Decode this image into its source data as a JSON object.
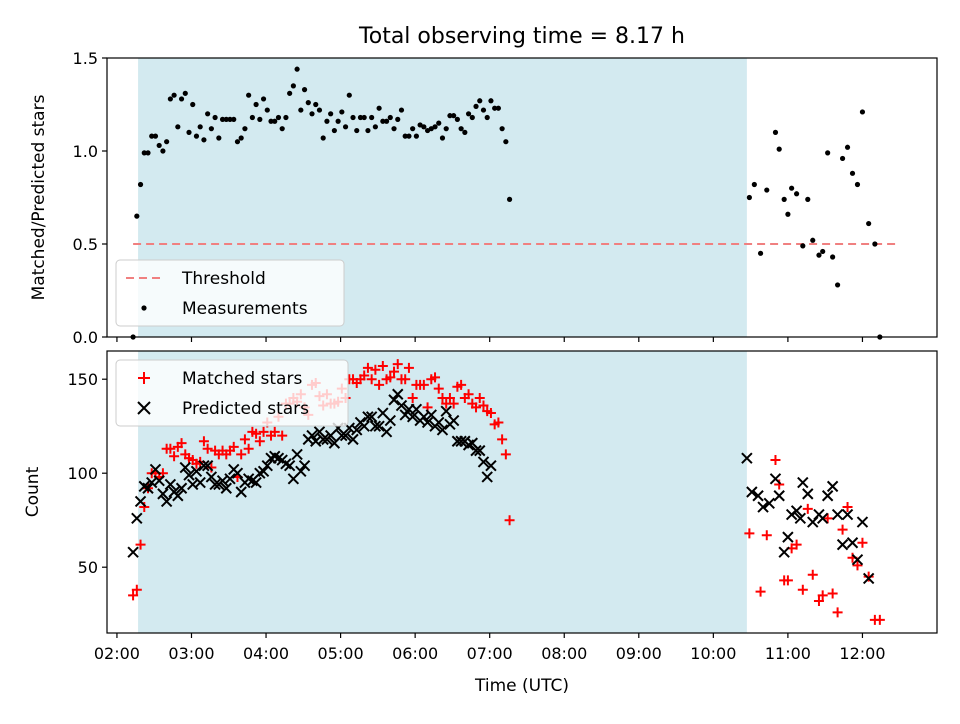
{
  "figure": {
    "title": "Total observing time = 8.17 h",
    "xlabel": "Time (UTC)",
    "x_ticks": [
      "02:00",
      "03:00",
      "04:00",
      "05:00",
      "06:00",
      "07:00",
      "08:00",
      "09:00",
      "10:00",
      "11:00",
      "12:00"
    ]
  },
  "colors": {
    "shade": "#d3eaf0",
    "threshold": "#f08080",
    "measure": "#000000",
    "matched": "#ff0000",
    "predicted": "#000000"
  },
  "chart_data": [
    {
      "type": "scatter",
      "ylabel": "Matched/Predicted stars",
      "xlim": [
        "01:52",
        "13:00"
      ],
      "ylim": [
        0,
        1.5
      ],
      "y_ticks": [
        "0.0",
        "0.5",
        "1.0",
        "1.5"
      ],
      "shaded_interval": [
        "02:17",
        "10:27"
      ],
      "threshold": {
        "name": "Threshold",
        "value": 0.5,
        "x_range": [
          "02:13",
          "12:30"
        ]
      },
      "legend": {
        "position": "lower-left",
        "entries": [
          "Threshold",
          "Measurements"
        ]
      },
      "series": [
        {
          "name": "Measurements",
          "x_start": "02:13",
          "x_step_minutes": 3,
          "values": [
            0.0,
            0.65,
            0.82,
            0.99,
            0.99,
            1.08,
            1.08,
            1.03,
            1.0,
            1.05,
            1.28,
            1.3,
            1.13,
            1.28,
            1.31,
            1.1,
            1.25,
            1.08,
            1.13,
            1.06,
            1.2,
            1.12,
            1.18,
            1.07,
            1.17,
            1.17,
            1.17,
            1.17,
            1.05,
            1.07,
            1.12,
            1.3,
            1.18,
            1.25,
            1.17,
            1.28,
            1.22,
            1.16,
            1.16,
            1.18,
            1.12,
            1.18,
            1.31,
            1.35,
            1.44,
            1.22,
            1.33,
            1.26,
            1.2,
            1.25,
            1.22,
            1.07,
            1.16,
            1.2,
            1.11,
            1.16,
            1.21,
            1.13,
            1.3,
            1.18,
            1.11,
            1.18,
            1.18,
            1.11,
            1.18,
            1.13,
            1.23,
            1.16,
            1.16,
            1.18,
            1.12,
            1.17,
            1.22,
            1.08,
            1.08,
            1.12,
            1.08,
            1.14,
            1.13,
            1.11,
            1.12,
            1.13,
            1.15,
            1.07,
            1.12,
            1.19,
            1.19,
            1.17,
            1.12,
            1.1,
            1.2,
            1.18,
            1.24,
            1.27,
            1.22,
            1.18,
            1.27,
            1.23,
            1.23,
            1.12,
            1.05,
            0.74
          ],
          "extra_points": [
            {
              "x": "10:29",
              "y": 0.75
            },
            {
              "x": "10:33",
              "y": 0.82
            },
            {
              "x": "10:38",
              "y": 0.45
            },
            {
              "x": "10:43",
              "y": 0.79
            },
            {
              "x": "10:50",
              "y": 1.1
            },
            {
              "x": "10:53",
              "y": 1.01
            },
            {
              "x": "10:57",
              "y": 0.74
            },
            {
              "x": "11:00",
              "y": 0.66
            },
            {
              "x": "11:03",
              "y": 0.8
            },
            {
              "x": "11:07",
              "y": 0.77
            },
            {
              "x": "11:12",
              "y": 0.49
            },
            {
              "x": "11:16",
              "y": 0.74
            },
            {
              "x": "11:20",
              "y": 0.52
            },
            {
              "x": "11:25",
              "y": 0.44
            },
            {
              "x": "11:28",
              "y": 0.46
            },
            {
              "x": "11:32",
              "y": 0.99
            },
            {
              "x": "11:36",
              "y": 0.43
            },
            {
              "x": "11:40",
              "y": 0.28
            },
            {
              "x": "11:44",
              "y": 0.96
            },
            {
              "x": "11:48",
              "y": 1.02
            },
            {
              "x": "11:52",
              "y": 0.88
            },
            {
              "x": "11:56",
              "y": 0.82
            },
            {
              "x": "12:00",
              "y": 1.21
            },
            {
              "x": "12:05",
              "y": 0.61
            },
            {
              "x": "12:10",
              "y": 0.5
            },
            {
              "x": "12:14",
              "y": 0.0
            }
          ]
        }
      ]
    },
    {
      "type": "scatter",
      "ylabel": "Count",
      "xlim": [
        "01:52",
        "13:00"
      ],
      "ylim": [
        15,
        165
      ],
      "y_ticks": [
        "50",
        "100",
        "150"
      ],
      "shaded_interval": [
        "02:17",
        "10:27"
      ],
      "legend": {
        "position": "top-left",
        "entries": [
          "Matched stars",
          "Predicted stars"
        ]
      },
      "series": [
        {
          "name": "Matched stars",
          "x_start": "02:13",
          "x_step_minutes": 3,
          "values": [
            35,
            38,
            62,
            82,
            92,
            100,
            100,
            98,
            100,
            113,
            113,
            109,
            114,
            116,
            110,
            108,
            107,
            105,
            106,
            117,
            113,
            103,
            112,
            110,
            112,
            110,
            112,
            114,
            98,
            110,
            118,
            113,
            122,
            121,
            117,
            122,
            127,
            120,
            122,
            130,
            120,
            137,
            137,
            140,
            138,
            142,
            135,
            131,
            147,
            148,
            141,
            136,
            142,
            137,
            137,
            138,
            145,
            140,
            150,
            150,
            148,
            150,
            152,
            156,
            150,
            155,
            147,
            157,
            150,
            151,
            154,
            158,
            150,
            150,
            156,
            140,
            147,
            147,
            147,
            135,
            150,
            151,
            145,
            140,
            137,
            140,
            137,
            146,
            147,
            140,
            142,
            137,
            135,
            140,
            136,
            133,
            132,
            126,
            127,
            118,
            110,
            75
          ],
          "extra_points": [
            {
              "x": "10:29",
              "y": 68
            },
            {
              "x": "10:38",
              "y": 37
            },
            {
              "x": "10:43",
              "y": 67
            },
            {
              "x": "10:50",
              "y": 107
            },
            {
              "x": "10:53",
              "y": 94
            },
            {
              "x": "10:57",
              "y": 43
            },
            {
              "x": "11:00",
              "y": 43
            },
            {
              "x": "11:03",
              "y": 60
            },
            {
              "x": "11:07",
              "y": 62
            },
            {
              "x": "11:12",
              "y": 38
            },
            {
              "x": "11:16",
              "y": 81
            },
            {
              "x": "11:20",
              "y": 46
            },
            {
              "x": "11:25",
              "y": 32
            },
            {
              "x": "11:28",
              "y": 35
            },
            {
              "x": "11:32",
              "y": 76
            },
            {
              "x": "11:36",
              "y": 36
            },
            {
              "x": "11:40",
              "y": 26
            },
            {
              "x": "11:44",
              "y": 70
            },
            {
              "x": "11:48",
              "y": 82
            },
            {
              "x": "11:52",
              "y": 55
            },
            {
              "x": "11:56",
              "y": 51
            },
            {
              "x": "12:00",
              "y": 63
            },
            {
              "x": "12:05",
              "y": 45
            },
            {
              "x": "12:10",
              "y": 22
            },
            {
              "x": "12:14",
              "y": 22
            }
          ]
        },
        {
          "name": "Predicted stars",
          "x_start": "02:13",
          "x_step_minutes": 3,
          "values": [
            58,
            76,
            85,
            93,
            92,
            95,
            102,
            96,
            89,
            85,
            94,
            90,
            88,
            92,
            103,
            99,
            94,
            101,
            95,
            104,
            104,
            98,
            94,
            94,
            96,
            92,
            97,
            102,
            100,
            90,
            95,
            97,
            96,
            95,
            100,
            101,
            104,
            108,
            109,
            108,
            107,
            105,
            104,
            97,
            110,
            101,
            104,
            118,
            120,
            117,
            122,
            118,
            118,
            120,
            116,
            124,
            120,
            120,
            124,
            118,
            123,
            127,
            125,
            130,
            130,
            125,
            125,
            132,
            122,
            128,
            139,
            142,
            136,
            131,
            134,
            130,
            134,
            128,
            130,
            127,
            131,
            125,
            127,
            123,
            133,
            126,
            128,
            117,
            117,
            117,
            115,
            116,
            112,
            112,
            106,
            98,
            104
          ],
          "extra_points": [
            {
              "x": "10:27",
              "y": 108
            },
            {
              "x": "10:31",
              "y": 90
            },
            {
              "x": "10:36",
              "y": 88
            },
            {
              "x": "10:40",
              "y": 82
            },
            {
              "x": "10:45",
              "y": 84
            },
            {
              "x": "10:50",
              "y": 97
            },
            {
              "x": "10:53",
              "y": 88
            },
            {
              "x": "10:57",
              "y": 58
            },
            {
              "x": "11:00",
              "y": 66
            },
            {
              "x": "11:03",
              "y": 78
            },
            {
              "x": "11:07",
              "y": 80
            },
            {
              "x": "11:10",
              "y": 76
            },
            {
              "x": "11:12",
              "y": 95
            },
            {
              "x": "11:16",
              "y": 89
            },
            {
              "x": "11:20",
              "y": 74
            },
            {
              "x": "11:25",
              "y": 78
            },
            {
              "x": "11:28",
              "y": 76
            },
            {
              "x": "11:32",
              "y": 88
            },
            {
              "x": "11:36",
              "y": 93
            },
            {
              "x": "11:40",
              "y": 78
            },
            {
              "x": "11:44",
              "y": 62
            },
            {
              "x": "11:48",
              "y": 78
            },
            {
              "x": "11:52",
              "y": 63
            },
            {
              "x": "11:56",
              "y": 54
            },
            {
              "x": "12:00",
              "y": 74
            },
            {
              "x": "12:05",
              "y": 44
            }
          ]
        }
      ]
    }
  ]
}
